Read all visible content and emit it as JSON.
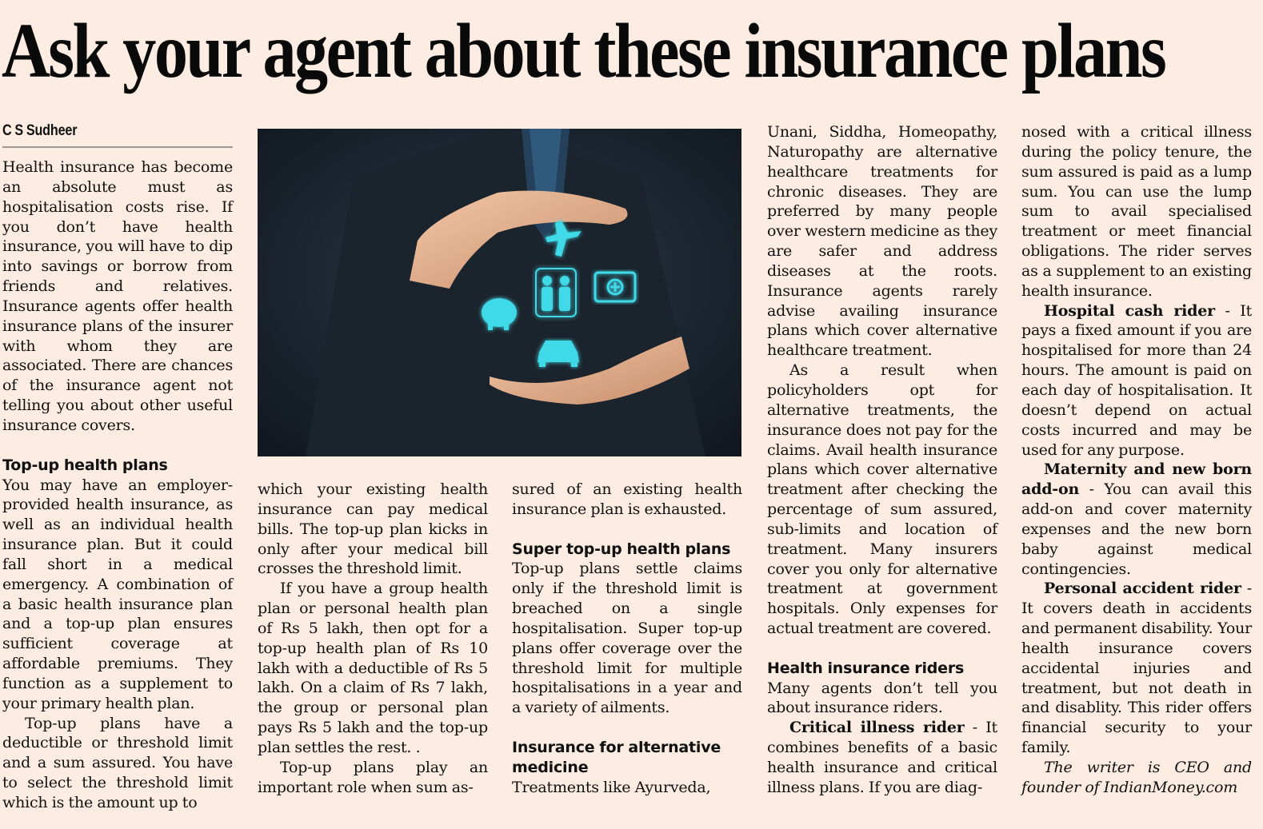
{
  "headline": "Ask your agent about these insurance plans",
  "byline": "C S Sudheer",
  "columns": {
    "c1": {
      "p1": "Health insurance has become an absolute must as hospitalisation costs rise. If you don’t have health insurance, you will have to dip into savings or borrow from friends and relatives. Insurance agents offer health insurance plans of the insurer with whom they are associated. There are chances of the insurance agent not telling you about other useful insurance covers.",
      "h1": "Top-up health plans",
      "p2": "You may have an employer-provided health insurance, as well as an individual health insurance plan. But it could fall short in a medical emergency. A combination of a basic health insurance plan and a top-up plan ensures sufficient coverage at affordable premiums. They function as a supplement to your primary health plan.",
      "p3": "Top-up plans have a deductible or threshold limit and a sum assured. You have to select the threshold limit which is the amount up to"
    },
    "c2": {
      "p1": "which your existing health insurance can pay medical bills. The top-up plan kicks in only after your medical bill crosses the threshold limit.",
      "p2": "If you have a group health plan or personal health plan of Rs 5 lakh, then opt for a top-up health plan of Rs 10 lakh with a deductible of Rs 5 lakh. On a claim of Rs 7 lakh, the group or personal plan pays Rs 5 lakh and the top-up plan settles the rest. .",
      "p3": "Top-up plans play an important role when sum as-"
    },
    "c3": {
      "p1": "sured of an existing health insurance plan is exhausted.",
      "h1": "Super top-up health plans",
      "p2": "Top-up plans settle claims only if the threshold limit is breached on a single hospitalisation. Super top-up plans offer coverage over the threshold limit for multiple hospitalisations in a year and a variety of ailments.",
      "h2": "Insurance for alternative medicine",
      "p3": "Treatments like Ayurveda,"
    },
    "c4": {
      "p1": "Unani, Siddha, Homeopathy, Naturopathy are alternative healthcare treatments for chronic diseases. They are preferred by many people over western medicine as they are safer and address diseases at the roots. Insurance agents rarely advise availing insurance plans which cover alternative healthcare treatment.",
      "p2": "As a result when policyholders opt for alternative treatments, the insurance does not pay for the claims. Avail health insurance plans which cover alternative treatment after checking the percentage of sum assured, sub-limits and location of treatment. Many insurers cover you only for alternative treatment at government hospitals. Only expenses for actual treatment are covered.",
      "h1": "Health insurance riders",
      "p3": "Many agents don’t tell you about insurance riders.",
      "p4_lead": "Critical illness rider",
      "p4": " - It combines benefits of a basic health insurance and critical illness plans. If you are diag-"
    },
    "c5": {
      "p1": "nosed with a critical illness during the policy tenure, the sum assured is paid as a lump sum. You can use the lump sum to avail specialised treatment or meet financial obligations. The rider serves as a supplement to an existing health insurance.",
      "p2_lead": "Hospital cash rider",
      "p2": " - It pays a fixed amount if you are hospitalised for more than 24 hours. The amount is paid on each day of hospitalisation. It doesn’t depend on actual costs incurred and may be used for any purpose.",
      "p3_lead": "Maternity and new born add-on",
      "p3": " - You can avail this add-on and cover maternity expenses and the new born baby against medical contingencies.",
      "p4_lead": "Personal accident rider",
      "p4": " - It covers death in accidents and permanent disability. Your health insurance covers accidental injuries and treatment, but not death in and disablity. This rider offers financial security to your family.",
      "footer": "The writer is CEO and founder of IndianMoney.com"
    }
  },
  "photo": {
    "icons": [
      "airplane-icon",
      "family-icon",
      "first-aid-kit-icon",
      "piggy-bank-icon",
      "car-icon"
    ],
    "glow_color": "#3fd9e8"
  }
}
